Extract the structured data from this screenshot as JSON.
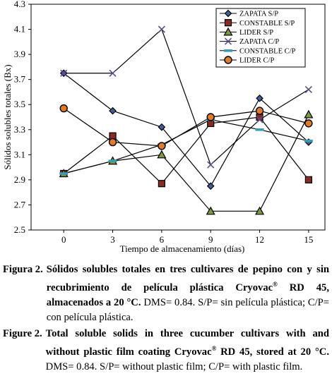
{
  "chart_data": {
    "type": "line",
    "xlabel": "Tiempo de almacenamiento (días)",
    "ylabel": "Sólidos solubles totales (Bx)",
    "x": [
      0,
      3,
      6,
      9,
      12,
      15
    ],
    "xlim": [
      -2,
      16
    ],
    "ylim": [
      2.5,
      4.3
    ],
    "yticks": [
      "2.5",
      "2.7",
      "2.9",
      "3.1",
      "3.3",
      "3.5",
      "3.7",
      "3.9",
      "4.1",
      "4.3"
    ],
    "xticks": [
      "0",
      "3",
      "6",
      "9",
      "12",
      "15"
    ],
    "grid": false,
    "legend_position": "top-right",
    "series": [
      {
        "name": "ZAPATA S/P",
        "marker": "diamond",
        "color": "#3f5e9c",
        "values": [
          3.75,
          3.45,
          3.32,
          2.85,
          3.55,
          3.2
        ]
      },
      {
        "name": "CONSTABLE S/P",
        "marker": "square",
        "color": "#8a2a24",
        "values": [
          2.95,
          3.25,
          2.87,
          3.35,
          3.4,
          2.9
        ]
      },
      {
        "name": "LIDER S/P",
        "marker": "triangle",
        "color": "#7b9a38",
        "values": [
          2.95,
          3.05,
          3.1,
          2.65,
          2.65,
          3.42
        ]
      },
      {
        "name": "ZAPATA C/P",
        "marker": "x",
        "color": "#5c4a8a",
        "values": [
          3.75,
          3.75,
          4.1,
          3.02,
          3.38,
          3.62
        ]
      },
      {
        "name": "CONSTABLE C/P",
        "marker": "dash",
        "color": "#3a9bb5",
        "values": [
          2.95,
          3.05,
          3.18,
          3.38,
          3.3,
          3.21
        ]
      },
      {
        "name": "LIDER C/P",
        "marker": "circle",
        "color": "#e07b2a",
        "values": [
          3.47,
          3.2,
          3.17,
          3.4,
          3.45,
          3.35
        ]
      }
    ]
  },
  "captions": [
    {
      "label": "Figura 2.",
      "bold": "Sólidos solubles totales en tres cultivares de pepino con y sin recubrimiento de película plástica Cryovac",
      "bold_sup": "®",
      "bold_end": " RD 45, almacenados a 20 °C.",
      "rest": " DMS= 0.84. S/P= sin película plástica; C/P= con película plástica."
    },
    {
      "label": "Figure 2.",
      "bold": "Total soluble solids in three cucumber cultivars with and without plastic film coating Cryovac",
      "bold_sup": "®",
      "bold_end": " RD 45, stored at 20 °C.",
      "rest": " DMS= 0.84. S/P= without plastic film; C/P= with plastic film."
    }
  ]
}
